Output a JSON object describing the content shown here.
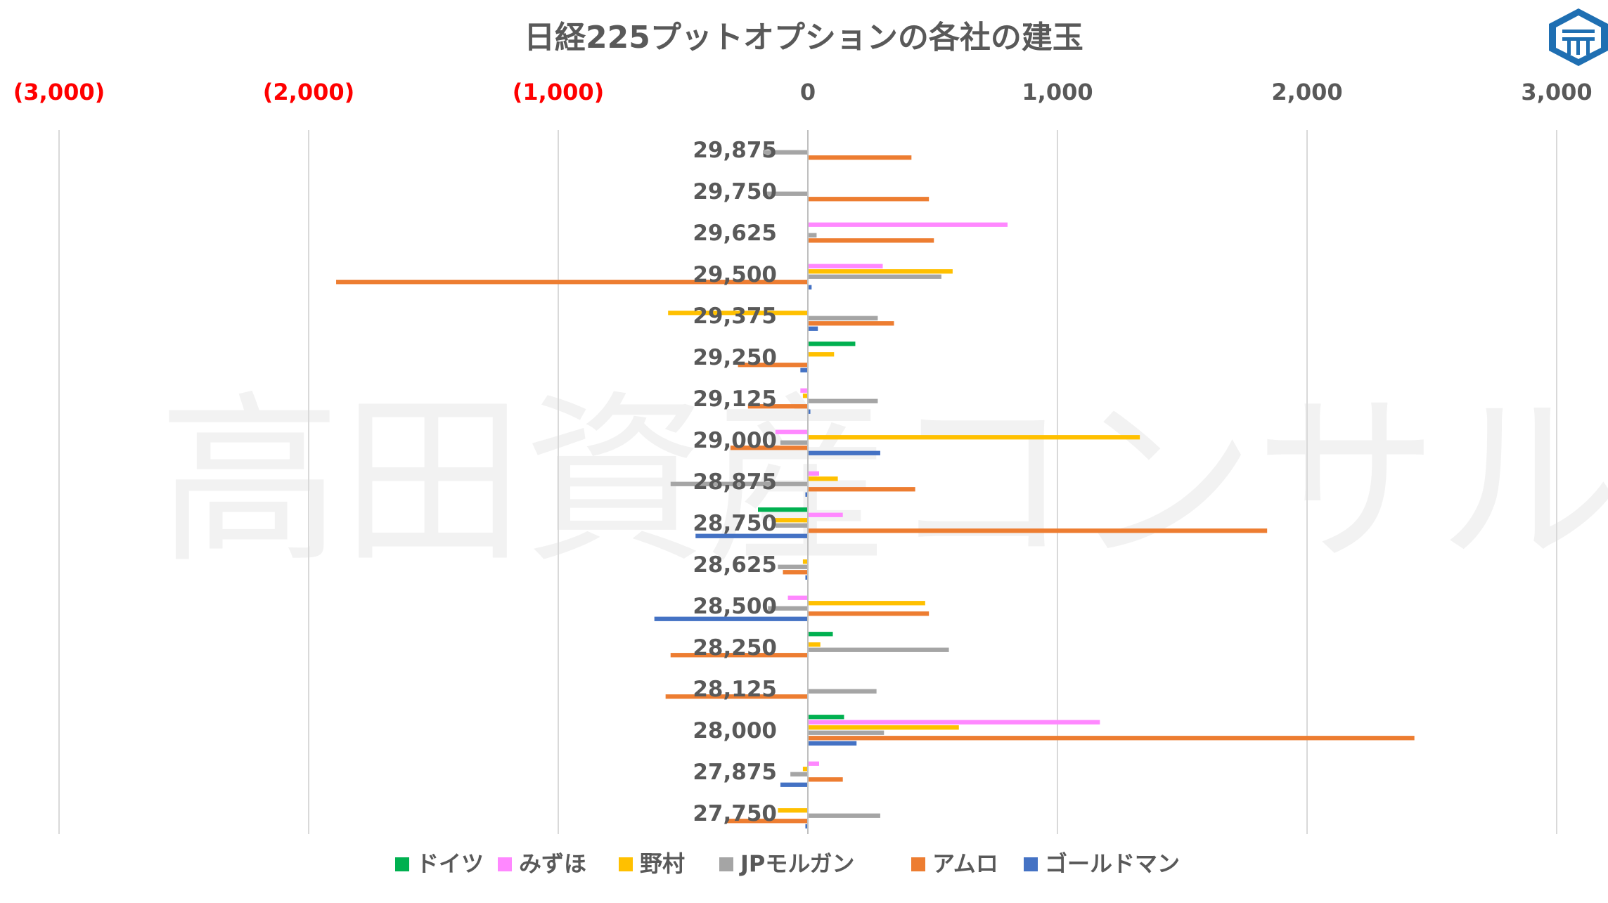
{
  "chart_data": {
    "type": "bar",
    "orientation": "horizontal",
    "title": "日経225プットオプションの各社の建玉",
    "watermark": "高田資産コンサル",
    "logo": "logo-icon",
    "xlim": [
      -3000,
      3000
    ],
    "x_ticks": [
      {
        "value": -3000,
        "label": "(3,000)",
        "color": "#ff0000"
      },
      {
        "value": -2000,
        "label": "(2,000)",
        "color": "#ff0000"
      },
      {
        "value": -1000,
        "label": "(1,000)",
        "color": "#ff0000"
      },
      {
        "value": 0,
        "label": "0",
        "color": "#595959"
      },
      {
        "value": 1000,
        "label": "1,000",
        "color": "#595959"
      },
      {
        "value": 2000,
        "label": "2,000",
        "color": "#595959"
      },
      {
        "value": 3000,
        "label": "3,000",
        "color": "#595959"
      }
    ],
    "grid": "vertical",
    "legend_position": "bottom",
    "categories": [
      "29,875",
      "29,750",
      "29,625",
      "29,500",
      "29,375",
      "29,250",
      "29,125",
      "29,000",
      "28,875",
      "28,750",
      "28,625",
      "28,500",
      "28,250",
      "28,125",
      "28,000",
      "27,875",
      "27,750"
    ],
    "series": [
      {
        "name": "ドイツ",
        "color": "#00b050",
        "values": [
          0,
          0,
          0,
          0,
          0,
          190,
          0,
          0,
          0,
          -200,
          0,
          0,
          100,
          0,
          145,
          0,
          0
        ]
      },
      {
        "name": "みずほ",
        "color": "#ff88ff",
        "values": [
          0,
          0,
          800,
          300,
          0,
          0,
          -30,
          -130,
          45,
          140,
          0,
          -80,
          0,
          0,
          1170,
          45,
          0
        ]
      },
      {
        "name": "野村",
        "color": "#ffc000",
        "values": [
          0,
          0,
          0,
          580,
          -560,
          105,
          -20,
          1330,
          120,
          -140,
          -20,
          470,
          50,
          0,
          605,
          -20,
          -120
        ]
      },
      {
        "name": "JPモルガン",
        "color": "#a5a5a5",
        "values": [
          -180,
          -180,
          35,
          535,
          280,
          0,
          280,
          -110,
          -550,
          -130,
          -120,
          -160,
          565,
          275,
          305,
          -70,
          290
        ]
      },
      {
        "name": "アムロ",
        "color": "#ed7d31",
        "values": [
          415,
          485,
          505,
          -1890,
          345,
          -280,
          -240,
          -310,
          430,
          1840,
          -100,
          485,
          -550,
          -570,
          2430,
          140,
          -330
        ]
      },
      {
        "name": "ゴールドマン",
        "color": "#4472c4",
        "values": [
          0,
          0,
          0,
          15,
          40,
          -30,
          10,
          290,
          -10,
          -450,
          -10,
          -615,
          0,
          0,
          195,
          -110,
          -10
        ]
      }
    ]
  }
}
